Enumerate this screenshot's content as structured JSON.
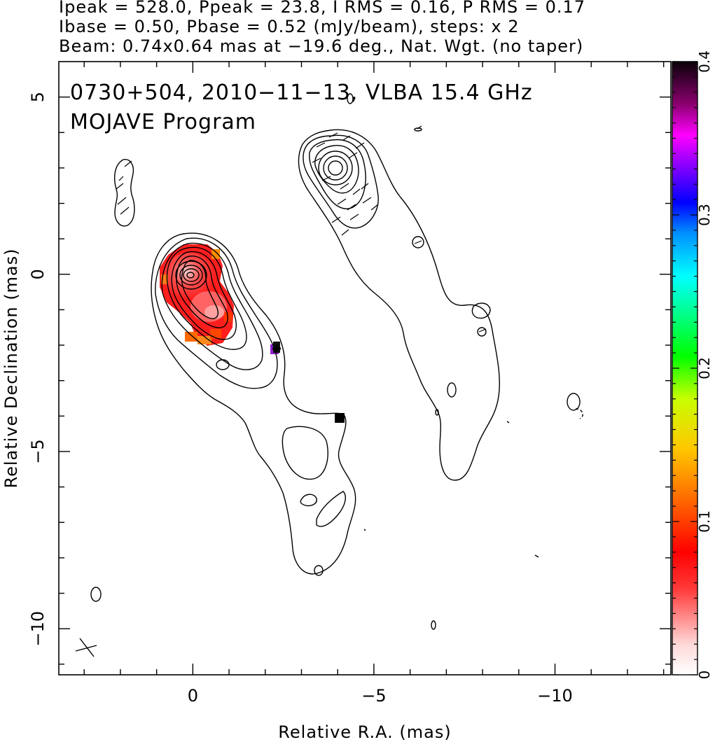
{
  "header": {
    "line1": "Ipeak = 528.0, Ppeak = 23.8, I RMS = 0.16, P RMS = 0.17",
    "line2": "Ibase = 0.50, Pbase = 0.52 (mJy/beam), steps: x 2",
    "line3": "Beam: 0.74x0.64 mas at −19.6 deg., Nat. Wgt. (no taper)"
  },
  "plot": {
    "title_line1": "0730+504, 2010−11−13, VLBA 15.4 GHz",
    "title_line2": "MOJAVE Program",
    "xlabel": "Relative R.A. (mas)",
    "ylabel": "Relative Declination (mas)",
    "xticks": [
      {
        "value": 0,
        "label": "0"
      },
      {
        "value": -5,
        "label": "−5"
      },
      {
        "value": -10,
        "label": "−10"
      }
    ],
    "yticks": [
      {
        "value": 5,
        "label": "5"
      },
      {
        "value": 0,
        "label": "0"
      },
      {
        "value": -5,
        "label": "−5"
      },
      {
        "value": -10,
        "label": "−10"
      }
    ]
  },
  "colorbar": {
    "ticks": [
      {
        "value": 0,
        "label": "0"
      },
      {
        "value": 0.1,
        "label": "0.1"
      },
      {
        "value": 0.2,
        "label": "0.2"
      },
      {
        "value": 0.3,
        "label": "0.3"
      },
      {
        "value": 0.4,
        "label": "0.4"
      }
    ],
    "range": [
      0,
      0.4
    ]
  },
  "chart_data": {
    "type": "heatmap",
    "title": "0730+504, 2010−11−13, VLBA 15.4 GHz",
    "subtitle": "MOJAVE Program",
    "xlabel": "Relative R.A. (mas)",
    "ylabel": "Relative Declination (mas)",
    "xlim": [
      3.7,
      -13.2
    ],
    "ylim": [
      -11.3,
      6
    ],
    "colorbar_range": [
      0,
      0.4
    ],
    "peak_position": [
      0,
      0
    ],
    "beam": {
      "major_mas": 0.74,
      "minor_mas": 0.64,
      "pa_deg": -19.6
    },
    "contour_base_mJy_per_beam": 0.5,
    "contour_step_factor": 2,
    "contour_levels": 11,
    "polarization_region": "core and inner jet, RA 0.8 to −1.3 mas, Dec 0.8 to −2.0 mas",
    "grid": false
  }
}
